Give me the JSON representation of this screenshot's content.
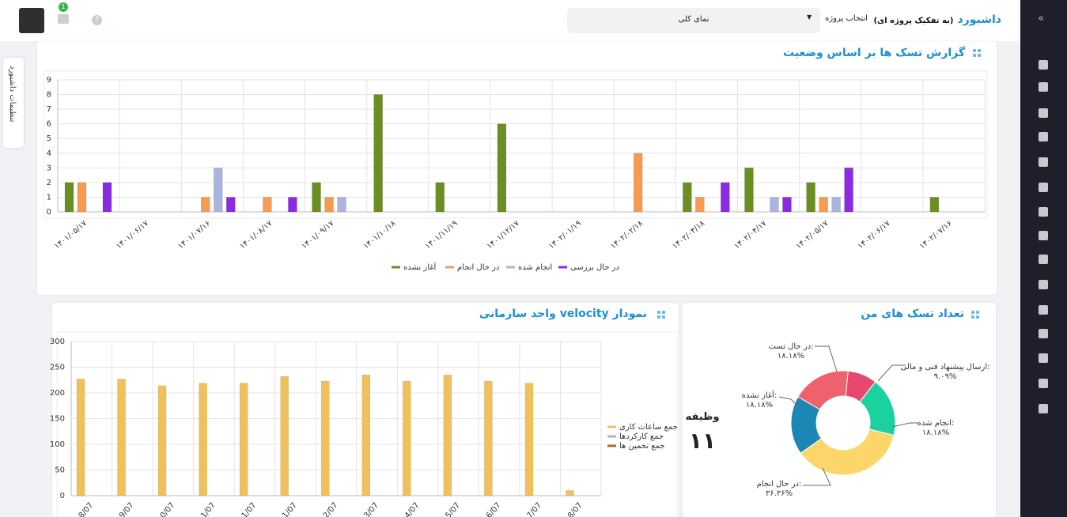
{
  "header": {
    "title": "داشبورد",
    "subtitle": "(به تفکیک پروژه ای)",
    "project_label": "انتخاب پروژه",
    "project_value": "نمای کلی",
    "notification_count": 1
  },
  "side_tab": "تنظیمات داشبورد",
  "chart_data": [
    {
      "type": "bar",
      "title": "گزارش تسک ها بر اساس وضعیت",
      "categories": [
        "۱۴۰۱/۰۵/۱۷",
        "۱۴۰۱/۰۶/۱۷",
        "۱۴۰۱/۰۷/۱۶",
        "۱۴۰۱/۰۸/۱۷",
        "۱۴۰۱/۰۹/۱۷",
        "۱۴۰۱/۱۰/۱۸",
        "۱۴۰۱/۱۱/۱۹",
        "۱۴۰۱/۱۲/۱۷",
        "۱۴۰۲/۰۱/۱۹",
        "۱۴۰۲/۰۲/۱۸",
        "۱۴۰۲/۰۳/۱۸",
        "۱۴۰۲/۰۴/۱۷",
        "۱۴۰۲/۰۵/۱۷",
        "۱۴۰۲/۰۶/۱۷",
        "۱۴۰۲/۰۷/۱۶"
      ],
      "series": [
        {
          "name": "آغاز نشده",
          "color": "#6b8e23",
          "values": [
            2,
            0,
            0,
            0,
            2,
            8,
            2,
            6,
            0,
            0,
            2,
            3,
            2,
            0,
            1
          ]
        },
        {
          "name": "در حال انجام",
          "color": "#f79a52",
          "values": [
            2,
            0,
            1,
            1,
            1,
            0,
            0,
            0,
            0,
            4,
            1,
            0,
            1,
            0,
            0
          ]
        },
        {
          "name": "انجام شده",
          "color": "#aab4de",
          "values": [
            0,
            0,
            3,
            0,
            1,
            0,
            0,
            0,
            0,
            0,
            0,
            1,
            1,
            0,
            0
          ]
        },
        {
          "name": "در حال بررسی",
          "color": "#8a2be2",
          "values": [
            2,
            0,
            1,
            1,
            0,
            0,
            0,
            0,
            0,
            0,
            2,
            1,
            3,
            0,
            0
          ]
        }
      ],
      "ylim": [
        0,
        9
      ],
      "yticks": [
        0,
        1,
        2,
        3,
        4,
        5,
        6,
        7,
        8,
        9
      ],
      "grid": true,
      "legend": "bottom"
    },
    {
      "type": "bar",
      "title": "نمودار velocity واحد سازمانی",
      "categories": [
        "8/07",
        "9/07",
        "0/07",
        "1/07",
        "1/07",
        "1/07",
        "2/07",
        "3/07",
        "4/07",
        "5/07",
        "6/07",
        "7/07",
        "8/07"
      ],
      "series": [
        {
          "name": "جمع ساعات کاری",
          "color": "#f0c05a",
          "values": [
            227,
            227,
            214,
            219,
            219,
            232,
            223,
            235,
            223,
            235,
            223,
            219,
            10
          ]
        },
        {
          "name": "جمع کارکردها",
          "color": "#b4b4b4",
          "values": [
            0,
            0,
            0,
            0,
            0,
            0,
            0,
            0,
            0,
            0,
            0,
            0,
            0
          ]
        },
        {
          "name": "جمع تخمین ها",
          "color": "#b5651d",
          "values": [
            0,
            0,
            0,
            0,
            0,
            0,
            0,
            0,
            0,
            0,
            0,
            0,
            0
          ]
        }
      ],
      "ylim": [
        0,
        300
      ],
      "yticks": [
        0,
        50,
        100,
        150,
        200,
        250,
        300
      ],
      "grid": true,
      "legend": "right"
    },
    {
      "type": "pie",
      "title": "تعداد تسک های من",
      "center_label": "وظیفه",
      "total": {
        "value": 11,
        "label": "۱۱"
      },
      "categories": [
        "در حال تست:",
        "ارسال پیشنهاد فنی و مالی:",
        "انجام شده:",
        "در حال انجام:",
        "آغاز نشده:"
      ],
      "values": [
        18.18,
        9.09,
        18.18,
        36.36,
        18.18
      ],
      "value_labels": [
        "۱۸.۱۸%",
        "۹.۰۹%",
        "۱۸.۱۸%",
        "۳۶.۳۶%",
        "۱۸.۱۸%"
      ],
      "colors": [
        "#f0616e",
        "#e8486f",
        "#1bd1a0",
        "#fcd56b",
        "#1a87b5"
      ]
    }
  ]
}
